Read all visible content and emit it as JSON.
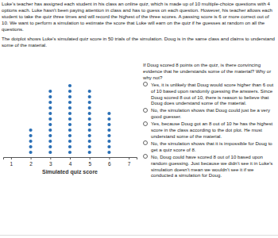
{
  "intro": "Luke's teacher has assigned each student in his class an online quiz, which is made up of 10 multiple-choice questions with 4 options each. Luke hasn't been paying attention in class and has to guess on each question. However, his teacher allows each student to take the quiz three times and will record the highest of the three scores. A passing score is 6 or more correct out of 10. We want to perform a simulation to estimate the score that Luke will earn on the quiz if he guesses at random on all the questions.",
  "description": "The dotplot shows Luke's simulated quiz score in 50 trials of the simulation. Doug is in the same class and claims to understand some of the material.",
  "chart_data": {
    "type": "dot",
    "x_label": "Simulated quiz score",
    "x": [
      1,
      2,
      3,
      4,
      5,
      6,
      7
    ],
    "counts": [
      0,
      5,
      12,
      13,
      12,
      8,
      0
    ],
    "xlim": [
      0.6,
      7.4
    ],
    "xticks": [
      1,
      2,
      3,
      4,
      5,
      6,
      7
    ],
    "color": "#2a6fb5"
  },
  "question": "If Doug scored 8 points on the quiz, is there convincing evidence that he understands some of the material? Why or why not?",
  "options": [
    "Yes, it is unlikely that Doug would score higher than 6 out of 10 based upon randomly guessing the answers. Since Doug scored 8 out of 10, there is reason to believe that Doug does understand some of the material.",
    "No, the simulation shows that Doug could just be a very good guesser.",
    "Yes, because Doug got an 8 out of 10 he has the highest score in the class according to the dot plot. He must understand some of the material.",
    "No, the simulation shows that it is impossible for Doug to get a quiz score of 8.",
    "No, Doug could have scored 8 out of 10 based upon random guessing. Just because we didn't see it in Luke's simulation doesn't mean we wouldn't see it if we conducted a simulation for Doug."
  ]
}
